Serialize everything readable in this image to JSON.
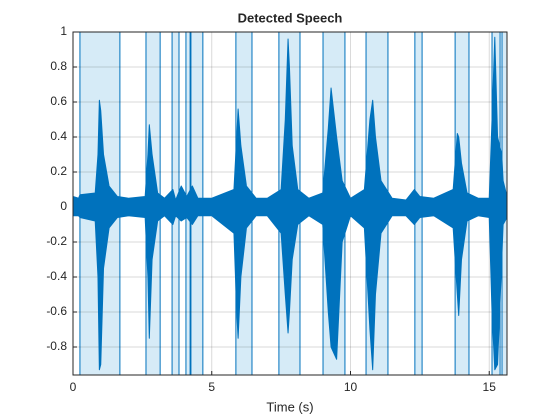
{
  "chart_data": {
    "type": "waveform",
    "title": "Detected Speech",
    "xlabel": "Time (s)",
    "xlim": [
      0,
      15.64
    ],
    "ylim": [
      -0.96,
      1
    ],
    "xticks": [
      0,
      5,
      10,
      15
    ],
    "yticks": [
      -0.8,
      -0.6,
      -0.4,
      -0.2,
      0,
      0.2,
      0.4,
      0.6,
      0.8,
      1
    ],
    "grid": true,
    "color": "#0072bd",
    "region_color": "#d6ebf7",
    "regions": [
      [
        0.25,
        1.69
      ],
      [
        2.63,
        3.14
      ],
      [
        3.57,
        3.82
      ],
      [
        4.07,
        4.22
      ],
      [
        4.25,
        4.68
      ],
      [
        5.87,
        6.45
      ],
      [
        7.42,
        8.18
      ],
      [
        9.01,
        9.8
      ],
      [
        10.56,
        11.35
      ],
      [
        12.32,
        12.58
      ],
      [
        13.77,
        14.27
      ],
      [
        15.1,
        15.39
      ],
      [
        15.46,
        15.64
      ]
    ],
    "x": [
      0,
      0.2,
      0.25,
      0.8,
      0.9,
      0.95,
      1.0,
      1.1,
      1.3,
      1.6,
      2.0,
      2.6,
      2.7,
      2.75,
      2.85,
      3.05,
      3.3,
      3.6,
      3.7,
      3.9,
      4.1,
      4.3,
      4.5,
      5.0,
      5.8,
      5.9,
      5.95,
      6.05,
      6.25,
      6.6,
      7.0,
      7.5,
      7.65,
      7.75,
      7.8,
      7.9,
      8.1,
      8.5,
      9.0,
      9.2,
      9.3,
      9.5,
      9.7,
      10.0,
      10.5,
      10.7,
      10.8,
      10.9,
      11.1,
      11.5,
      12.0,
      12.3,
      12.5,
      13.0,
      13.7,
      13.85,
      13.9,
      14.0,
      14.2,
      14.6,
      15.0,
      15.1,
      15.2,
      15.3,
      15.45,
      15.5,
      15.64
    ],
    "upper": [
      0.06,
      0.05,
      0.07,
      0.08,
      0.3,
      0.61,
      0.55,
      0.3,
      0.12,
      0.06,
      0.05,
      0.06,
      0.3,
      0.47,
      0.3,
      0.08,
      0.05,
      0.1,
      0.04,
      0.12,
      0.06,
      0.12,
      0.05,
      0.05,
      0.1,
      0.4,
      0.56,
      0.35,
      0.12,
      0.05,
      0.05,
      0.1,
      0.5,
      0.96,
      0.8,
      0.35,
      0.1,
      0.05,
      0.08,
      0.45,
      0.68,
      0.4,
      0.15,
      0.05,
      0.1,
      0.5,
      0.61,
      0.4,
      0.15,
      0.05,
      0.04,
      0.1,
      0.06,
      0.05,
      0.1,
      0.42,
      0.4,
      0.25,
      0.08,
      0.05,
      0.05,
      0.5,
      0.97,
      0.4,
      0.3,
      0.15,
      0.06
    ],
    "lower": [
      -0.05,
      -0.05,
      -0.06,
      -0.08,
      -0.4,
      -0.93,
      -0.9,
      -0.35,
      -0.12,
      -0.06,
      -0.05,
      -0.06,
      -0.4,
      -0.75,
      -0.3,
      -0.08,
      -0.05,
      -0.1,
      -0.05,
      -0.08,
      -0.06,
      -0.1,
      -0.05,
      -0.05,
      -0.15,
      -0.6,
      -0.75,
      -0.4,
      -0.12,
      -0.05,
      -0.05,
      -0.15,
      -0.5,
      -0.72,
      -0.6,
      -0.3,
      -0.1,
      -0.05,
      -0.1,
      -0.6,
      -0.8,
      -0.87,
      -0.2,
      -0.05,
      -0.12,
      -0.7,
      -0.93,
      -0.5,
      -0.15,
      -0.05,
      -0.05,
      -0.1,
      -0.06,
      -0.05,
      -0.12,
      -0.5,
      -0.62,
      -0.3,
      -0.08,
      -0.05,
      -0.06,
      -0.6,
      -0.93,
      -0.9,
      -0.3,
      -0.1,
      -0.06
    ]
  }
}
